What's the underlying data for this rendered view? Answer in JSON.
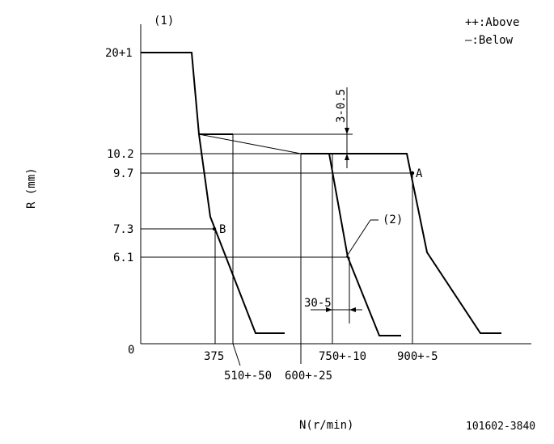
{
  "figure_ref": "(1)",
  "legend": {
    "above": "++:Above",
    "below": "—:Below"
  },
  "axes": {
    "y_label": "R (mm)",
    "x_label": "N(r/min)",
    "y_ticks": [
      "20+1",
      "10.2",
      "9.7",
      "7.3",
      "6.1",
      "0"
    ],
    "x_ticks": [
      "375",
      "510+-50",
      "600+-25",
      "750+-10",
      "900+-5"
    ]
  },
  "annotations": {
    "gap_dimension": "3-0.5",
    "width_dimension": "30-5",
    "curve_ref": "(2)",
    "point_a": "A",
    "point_b": "B"
  },
  "document_code": "101602-3840"
}
